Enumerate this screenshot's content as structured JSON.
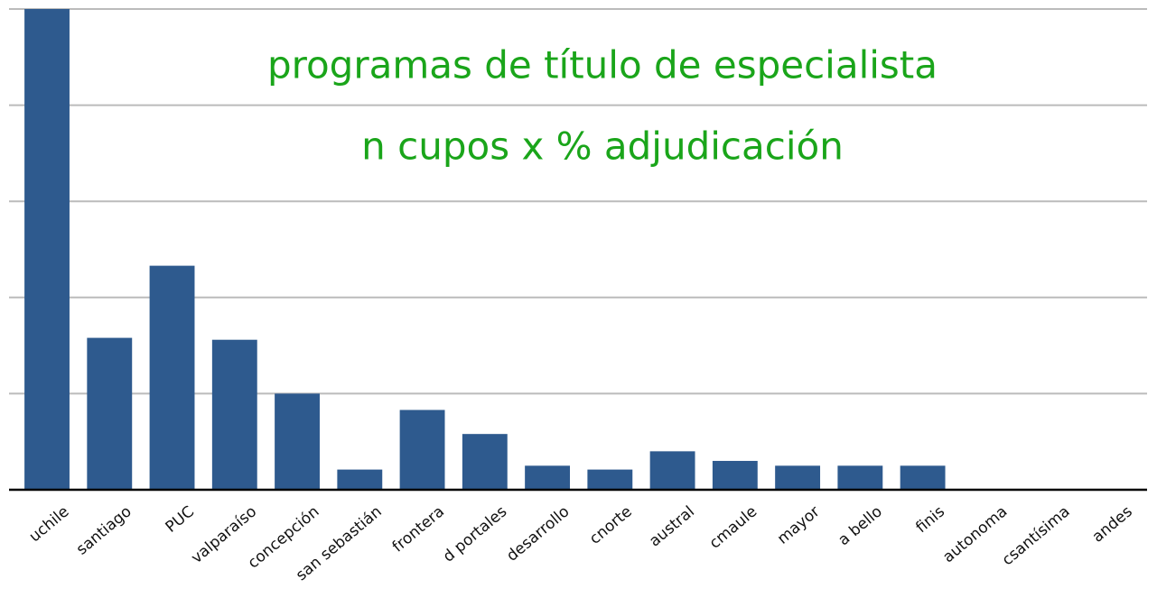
{
  "chart_data": {
    "type": "bar",
    "title": "programas de título de especialista",
    "subtitle": "n cupos x % adjudicación",
    "categories": [
      "uchile",
      "santiago",
      "PUC",
      "valparaíso",
      "concepción",
      "san sebastián",
      "frontera",
      "d portales",
      "desarrollo",
      "cnorte",
      "austral",
      "cmaule",
      "mayor",
      "a bello",
      "finis",
      "autonoma",
      "csantísima",
      "andes"
    ],
    "values": [
      5.0,
      1.58,
      2.33,
      1.56,
      1.0,
      0.21,
      0.83,
      0.58,
      0.25,
      0.21,
      0.4,
      0.3,
      0.25,
      0.25,
      0.25,
      0,
      0,
      0
    ],
    "color": "#2e5a8e",
    "ylim": [
      0,
      5
    ],
    "yticks": [
      0,
      1,
      2,
      3,
      4,
      5
    ],
    "grid": true
  }
}
